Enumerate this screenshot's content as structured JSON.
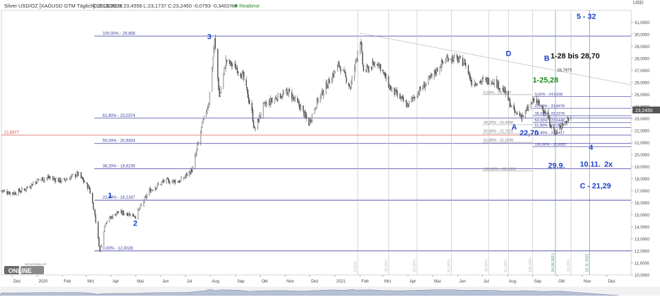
{
  "header": {
    "title": "Silver USD/OZ [XAGUSD GTM Täglich] 18.10.2021",
    "ohlc": "O:23,3292 H:23,4558 L:23,1737 C:23,2450 -0,0793 -0,3401%",
    "realtime": "Realtime"
  },
  "axis": {
    "y_unit": "USD",
    "current_price": "23,2450",
    "left_marker": "21,6377",
    "logo_brand": "ONLINE",
    "logo_top": "Wirtschaftsprofi"
  },
  "colors": {
    "candle_up": "#ffffff",
    "candle_down": "#555555",
    "fib_major": "#3a3aa0",
    "fib_minor": "#8888aa",
    "marker_red": "#d04040",
    "annot_blue": "#1a3fc8",
    "annot_green": "#1a8a1a",
    "annot_black": "#111111"
  },
  "chart_data": {
    "type": "candlestick",
    "title": "Silver USD/OZ [XAGUSD GTM Täglich]",
    "ylim": [
      10,
      32
    ],
    "x_range": [
      "2019-11-18",
      "2021-12-31"
    ],
    "x_ticks": [
      {
        "date": "2019-12-01",
        "label": "Dez"
      },
      {
        "date": "2020-01-01",
        "label": "2020"
      },
      {
        "date": "2020-02-01",
        "label": "Feb"
      },
      {
        "date": "2020-03-01",
        "label": "Mrz"
      },
      {
        "date": "2020-04-01",
        "label": "Apr"
      },
      {
        "date": "2020-05-01",
        "label": "Mai"
      },
      {
        "date": "2020-06-01",
        "label": "Jun"
      },
      {
        "date": "2020-07-01",
        "label": "Jul"
      },
      {
        "date": "2020-08-01",
        "label": "Aug"
      },
      {
        "date": "2020-09-01",
        "label": "Sep"
      },
      {
        "date": "2020-10-01",
        "label": "Okt"
      },
      {
        "date": "2020-11-01",
        "label": "Nov"
      },
      {
        "date": "2020-12-01",
        "label": "Dez"
      },
      {
        "date": "2021-01-01",
        "label": "2021"
      },
      {
        "date": "2021-02-01",
        "label": "Feb"
      },
      {
        "date": "2021-03-01",
        "label": "Mrz"
      },
      {
        "date": "2021-04-01",
        "label": "Apr"
      },
      {
        "date": "2021-05-01",
        "label": "Mai"
      },
      {
        "date": "2021-06-01",
        "label": "Jun"
      },
      {
        "date": "2021-07-01",
        "label": "Jul"
      },
      {
        "date": "2021-08-01",
        "label": "Aug"
      },
      {
        "date": "2021-09-01",
        "label": "Sep"
      },
      {
        "date": "2021-10-01",
        "label": "Okt"
      },
      {
        "date": "2021-11-01",
        "label": "Nov"
      },
      {
        "date": "2021-12-01",
        "label": "Dez"
      }
    ],
    "y_ticks": [
      10,
      11,
      12,
      13,
      14,
      15,
      16,
      17,
      18,
      19,
      20,
      21,
      22,
      23,
      24,
      25,
      26,
      27,
      28,
      29,
      30,
      31
    ],
    "y_tick_labels": [
      "10,0000",
      "11,0000",
      "12,0000",
      "13,0000",
      "14,0000",
      "15,0000",
      "16,0000",
      "17,0000",
      "18,0000",
      "19,0000",
      "20,0000",
      "21,0000",
      "22,0000",
      "23,0000",
      "24,0000",
      "25,0000",
      "26,0000",
      "27,0000",
      "28,0000",
      "29,0000",
      "30,0000",
      "31,0000"
    ],
    "price_path": [
      [
        "2019-11-18",
        17.0
      ],
      [
        "2019-12-02",
        16.8
      ],
      [
        "2019-12-16",
        17.1
      ],
      [
        "2020-01-02",
        17.9
      ],
      [
        "2020-01-15",
        18.1
      ],
      [
        "2020-02-01",
        17.8
      ],
      [
        "2020-02-20",
        18.4
      ],
      [
        "2020-03-05",
        17.2
      ],
      [
        "2020-03-12",
        15.0
      ],
      [
        "2020-03-18",
        12.0
      ],
      [
        "2020-03-25",
        14.4
      ],
      [
        "2020-04-08",
        15.2
      ],
      [
        "2020-04-22",
        15.1
      ],
      [
        "2020-05-01",
        14.9
      ],
      [
        "2020-05-18",
        17.0
      ],
      [
        "2020-06-05",
        17.8
      ],
      [
        "2020-06-25",
        17.8
      ],
      [
        "2020-07-10",
        18.8
      ],
      [
        "2020-07-22",
        22.5
      ],
      [
        "2020-07-30",
        24.4
      ],
      [
        "2020-08-06",
        29.5
      ],
      [
        "2020-08-12",
        24.8
      ],
      [
        "2020-08-20",
        27.8
      ],
      [
        "2020-09-02",
        27.2
      ],
      [
        "2020-09-10",
        26.5
      ],
      [
        "2020-09-21",
        23.5
      ],
      [
        "2020-09-24",
        22.0
      ],
      [
        "2020-10-05",
        24.0
      ],
      [
        "2020-10-22",
        24.8
      ],
      [
        "2020-11-05",
        25.2
      ],
      [
        "2020-11-20",
        23.9
      ],
      [
        "2020-11-30",
        22.6
      ],
      [
        "2020-12-10",
        24.4
      ],
      [
        "2020-12-22",
        25.8
      ],
      [
        "2021-01-06",
        27.5
      ],
      [
        "2021-01-20",
        25.6
      ],
      [
        "2021-02-01",
        29.6
      ],
      [
        "2021-02-05",
        26.9
      ],
      [
        "2021-02-23",
        27.7
      ],
      [
        "2021-03-10",
        25.5
      ],
      [
        "2021-03-31",
        24.1
      ],
      [
        "2021-04-12",
        25.1
      ],
      [
        "2021-04-28",
        26.3
      ],
      [
        "2021-05-10",
        27.4
      ],
      [
        "2021-05-20",
        28.1
      ],
      [
        "2021-06-01",
        27.9
      ],
      [
        "2021-06-10",
        27.6
      ],
      [
        "2021-06-18",
        26.0
      ],
      [
        "2021-06-30",
        26.1
      ],
      [
        "2021-07-14",
        26.2
      ],
      [
        "2021-07-28",
        25.3
      ],
      [
        "2021-08-09",
        23.5
      ],
      [
        "2021-08-20",
        23.2
      ],
      [
        "2021-09-03",
        24.6
      ],
      [
        "2021-09-15",
        23.7
      ],
      [
        "2021-09-29",
        21.7
      ],
      [
        "2021-10-06",
        22.5
      ],
      [
        "2021-10-12",
        22.7
      ],
      [
        "2021-10-18",
        23.25
      ]
    ],
    "horizontal_levels": [
      {
        "price": 29.858,
        "label": "100,00% - 29,858",
        "style": "major"
      },
      {
        "price": 23.0374,
        "label": "61,80% - 23,0374",
        "style": "major"
      },
      {
        "price": 20.9304,
        "label": "50,00% - 20,9304",
        "style": "major"
      },
      {
        "price": 18.8235,
        "label": "38,20% - 18,8235",
        "style": "major"
      },
      {
        "price": 16.2167,
        "label": "23,60% - 16,2167",
        "style": "major"
      },
      {
        "price": 12.0028,
        "label": "0,00% - 12,0028",
        "style": "major"
      },
      {
        "price": 21.6377,
        "label": "21,6377",
        "style": "red"
      },
      {
        "price": 24.8338,
        "label": "0,00% - 24,8338",
        "style": "minor"
      },
      {
        "price": 23.8478,
        "label": "23,60% - 23,8478",
        "style": "minor"
      },
      {
        "price": 23.2378,
        "label": "38,20% - 23,2378",
        "style": "minor"
      },
      {
        "price": 22.6448,
        "label": "50,00% - 22,6448",
        "style": "minor"
      },
      {
        "price": 22.2517,
        "label": "61,80% - 22,2517",
        "style": "minor"
      },
      {
        "price": 21.6417,
        "label": "76,40% - 21,6417",
        "style": "minor"
      },
      {
        "price": 20.6557,
        "label": "100,00% - 20,6557",
        "style": "minor"
      }
    ],
    "grey_levels": [
      {
        "price": 24.9837,
        "label": "0,00% - 24,9837"
      },
      {
        "price": 22.4996,
        "label": "38,20% - 22,4996"
      },
      {
        "price": 21.7622,
        "label": "50,00% - 21,7622"
      },
      {
        "price": 21.0246,
        "label": "61,80% - 21,0246"
      },
      {
        "price": 18.6368,
        "label": "100,00% - 18,6368"
      }
    ],
    "vertical_markers": [
      {
        "date": "2021-01-29",
        "label": "0,00%"
      },
      {
        "date": "2021-03-08",
        "label": "38,20%"
      },
      {
        "date": "2021-04-12",
        "label": "50,00%"
      },
      {
        "date": "2021-05-24",
        "label": "61,80%"
      },
      {
        "date": "2021-07-09",
        "label": "38,20%"
      },
      {
        "date": "2021-08-02",
        "label": "61,80%"
      },
      {
        "date": "2021-09-01",
        "label": "100,00%"
      },
      {
        "date": "2021-09-29",
        "label": "29.09.2021"
      },
      {
        "date": "2021-10-18",
        "label": "38,20%"
      },
      {
        "date": "2021-11-10",
        "label": "10.11.2021"
      }
    ],
    "trendline": {
      "from": [
        "2021-02-01",
        30.1
      ],
      "to": [
        "2021-12-31",
        25.8
      ],
      "label": "26,7975"
    },
    "annotations": [
      {
        "text": "1",
        "date": "2020-03-28",
        "price": 16.4,
        "color": "blue"
      },
      {
        "text": "2",
        "date": "2020-04-28",
        "price": 14.1,
        "color": "blue"
      },
      {
        "text": "3",
        "date": "2020-07-28",
        "price": 29.6,
        "color": "blue"
      },
      {
        "text": "D",
        "date": "2021-07-30",
        "price": 28.2,
        "color": "blue"
      },
      {
        "text": "B",
        "date": "2021-09-15",
        "price": 27.8,
        "color": "blue"
      },
      {
        "text": "1-28 bis 28,70",
        "date": "2021-09-23",
        "price": 28.0,
        "color": "black"
      },
      {
        "text": "5 - 32",
        "date": "2021-10-25",
        "price": 31.3,
        "color": "blue"
      },
      {
        "text": "1-25,28",
        "date": "2021-09-01",
        "price": 26.0,
        "color": "green"
      },
      {
        "text": "A",
        "date": "2021-08-06",
        "price": 22.1,
        "color": "blue"
      },
      {
        "text": "22,70",
        "date": "2021-08-16",
        "price": 21.6,
        "color": "blue"
      },
      {
        "text": "4",
        "date": "2021-11-09",
        "price": 20.4,
        "color": "blue"
      },
      {
        "text": "29.9.",
        "date": "2021-09-20",
        "price": 18.9,
        "color": "blue"
      },
      {
        "text": "10.11.",
        "date": "2021-10-29",
        "price": 19.0,
        "color": "blue"
      },
      {
        "text": "2x",
        "date": "2021-11-28",
        "price": 19.0,
        "color": "blue"
      },
      {
        "text": "C - 21,29",
        "date": "2021-10-29",
        "price": 17.2,
        "color": "blue"
      }
    ]
  }
}
